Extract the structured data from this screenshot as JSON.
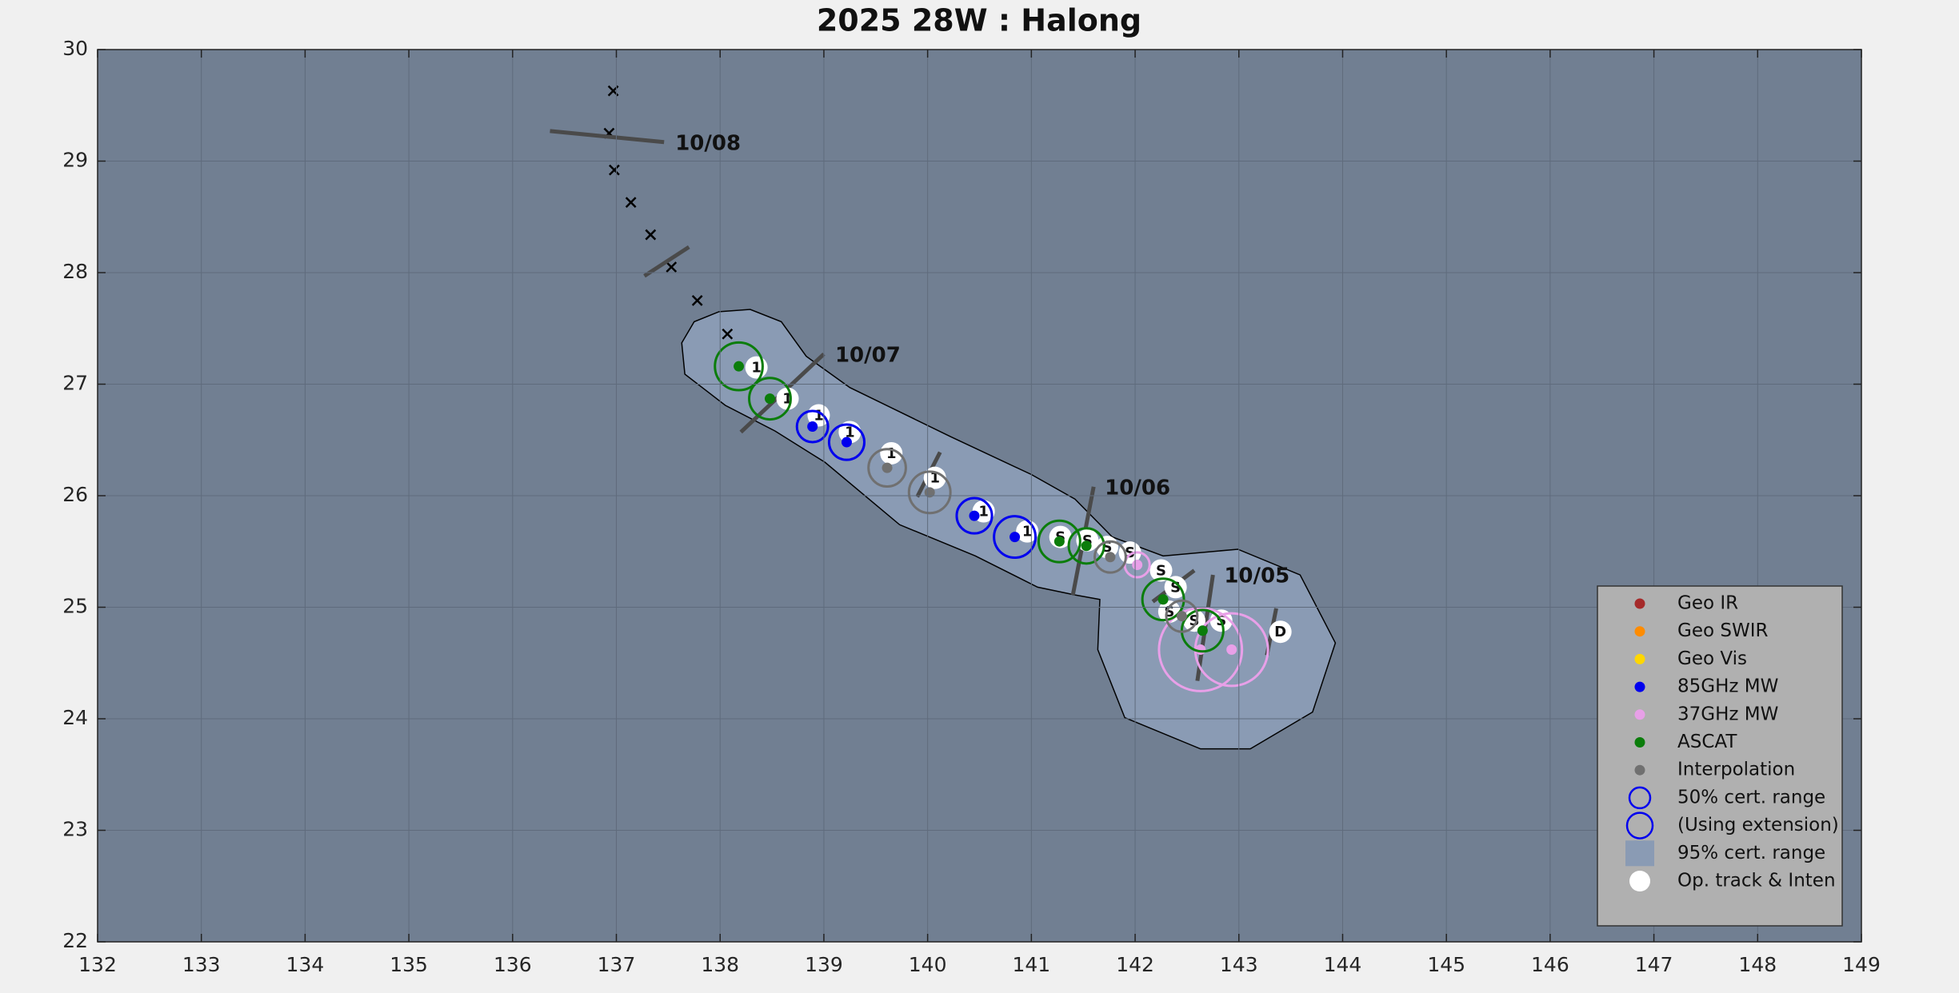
{
  "chart_data": {
    "type": "track",
    "title": "2025  28W :  Halong",
    "xlim": [
      132,
      149
    ],
    "ylim": [
      22,
      30
    ],
    "xticks": [
      132,
      133,
      134,
      135,
      136,
      137,
      138,
      139,
      140,
      141,
      142,
      143,
      144,
      145,
      146,
      147,
      148,
      149
    ],
    "yticks": [
      22,
      23,
      24,
      25,
      26,
      27,
      28,
      29,
      30
    ],
    "grid": true,
    "legend": "lower right",
    "series": [
      {
        "name": "Geo IR",
        "color": "#a52a2a",
        "x": [],
        "y": [],
        "radius": []
      },
      {
        "name": "Geo SWIR",
        "color": "#ff8c00",
        "x": [],
        "y": [],
        "radius": []
      },
      {
        "name": "Geo Vis",
        "color": "#ffd700",
        "x": [],
        "y": [],
        "radius": []
      },
      {
        "name": "85GHz MW",
        "color": "#0000ee",
        "x": [
          138.89,
          139.22,
          140.45,
          140.84
        ],
        "y": [
          26.62,
          26.48,
          25.82,
          25.63
        ],
        "radius": [
          0.15,
          0.17,
          0.17,
          0.2
        ]
      },
      {
        "name": "37GHz MW",
        "color": "#e8a0e8",
        "x": [
          142.02,
          142.63,
          142.93
        ],
        "y": [
          25.38,
          24.62,
          24.62
        ],
        "radius": [
          0.12,
          0.4,
          0.35
        ]
      },
      {
        "name": "ASCAT",
        "color": "#0b7d0b",
        "x": [
          138.18,
          138.48,
          141.27,
          141.53,
          142.27,
          142.65
        ],
        "y": [
          27.16,
          26.87,
          25.59,
          25.55,
          25.07,
          24.79
        ],
        "radius": [
          0.23,
          0.2,
          0.2,
          0.17,
          0.2,
          0.2
        ]
      },
      {
        "name": "Interpolation",
        "color": "#707070",
        "x": [
          139.61,
          140.02,
          141.76,
          142.45
        ],
        "y": [
          26.25,
          26.03,
          25.45,
          24.92
        ],
        "radius": [
          0.18,
          0.2,
          0.15,
          0.15
        ]
      }
    ],
    "cert_circles": {
      "color": "#0000ee",
      "names": [
        "50% cert. range",
        "(Using extension)"
      ]
    },
    "region": {
      "name": "95% cert. range",
      "color": "#8a9bb4",
      "x": [
        137.99,
        138.29,
        138.59,
        138.83,
        139.25,
        140.22,
        141.0,
        141.42,
        141.78,
        142.27,
        142.99,
        143.59,
        143.93,
        143.71,
        143.11,
        142.63,
        141.9,
        141.64,
        141.66,
        141.42,
        141.06,
        140.46,
        139.73,
        139.01,
        138.53,
        138.05,
        137.66,
        137.63,
        137.75
      ],
      "y": [
        27.65,
        27.67,
        27.56,
        27.25,
        26.97,
        26.53,
        26.19,
        25.97,
        25.63,
        25.46,
        25.52,
        25.29,
        24.68,
        24.06,
        23.73,
        23.73,
        24.01,
        24.62,
        25.07,
        25.11,
        25.18,
        25.46,
        25.74,
        26.3,
        26.58,
        26.81,
        27.09,
        27.37,
        27.56
      ]
    },
    "op_track": {
      "name": "Op. track & Inten",
      "color": "#ffffff",
      "x": [
        138.35,
        138.65,
        138.95,
        139.25,
        139.65,
        140.07,
        140.54,
        140.96,
        141.28,
        141.54,
        141.73,
        141.95,
        142.25,
        142.39,
        142.33,
        142.57,
        142.83,
        143.4
      ],
      "y": [
        27.15,
        26.87,
        26.72,
        26.57,
        26.38,
        26.16,
        25.86,
        25.68,
        25.63,
        25.6,
        25.54,
        25.49,
        25.33,
        25.18,
        24.96,
        24.88,
        24.88,
        24.78
      ],
      "labels": [
        "1",
        "1",
        "1",
        "1",
        "1",
        "1",
        "1",
        "1",
        "S",
        "S",
        "S",
        "S",
        "S",
        "S",
        "S",
        "S",
        "S",
        "D"
      ]
    },
    "forecast": {
      "x": [
        136.97,
        136.93,
        136.98,
        137.14,
        137.33,
        137.53,
        137.78,
        138.07
      ],
      "y": [
        29.63,
        29.25,
        28.92,
        28.63,
        28.34,
        28.05,
        27.75,
        27.45
      ]
    },
    "time_bars": [
      {
        "x": [
          136.36,
          137.46
        ],
        "y": [
          29.27,
          29.17
        ],
        "label": "10/08"
      },
      {
        "x": [
          137.27,
          137.7
        ],
        "y": [
          27.97,
          28.23
        ]
      },
      {
        "x": [
          138.2,
          139.0
        ],
        "y": [
          26.57,
          27.27
        ],
        "label": "10/07"
      },
      {
        "x": [
          139.9,
          140.12
        ],
        "y": [
          25.99,
          26.39
        ]
      },
      {
        "x": [
          141.4,
          141.6
        ],
        "y": [
          25.11,
          26.08
        ],
        "label": "10/06"
      },
      {
        "x": [
          142.17,
          142.57
        ],
        "y": [
          25.05,
          25.33
        ]
      },
      {
        "x": [
          142.6,
          142.75
        ],
        "y": [
          24.34,
          25.29
        ],
        "label": "10/05"
      },
      {
        "x": [
          143.27,
          143.36
        ],
        "y": [
          24.57,
          24.99
        ]
      }
    ]
  }
}
